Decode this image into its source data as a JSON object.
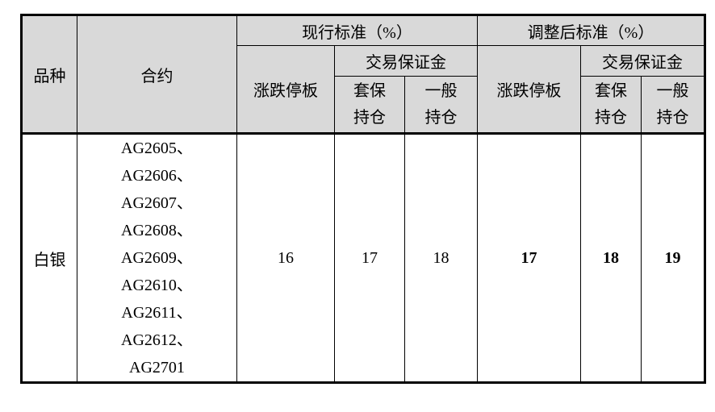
{
  "header": {
    "variety": "品种",
    "contract": "合约",
    "current_title": "现行标准（%）",
    "adjusted_title": "调整后标准（%）",
    "price_limit": "涨跌停板",
    "trading_margin": "交易保证金",
    "hedge_line1": "套保",
    "hedge_line2": "持仓",
    "general_line1": "一般",
    "general_line2": "持仓"
  },
  "row": {
    "variety": "白银",
    "contracts": [
      "AG2605、",
      "AG2606、",
      "AG2607、",
      "AG2608、",
      "AG2609、",
      "AG2610、",
      "AG2611、",
      "AG2612、",
      "AG2701"
    ],
    "current": {
      "price_limit": "16",
      "hedge": "17",
      "general": "18"
    },
    "adjusted": {
      "price_limit": "17",
      "hedge": "18",
      "general": "19"
    }
  },
  "colors": {
    "header_bg": "#d9d9d9",
    "border": "#000000",
    "text": "#000000",
    "page_bg": "#ffffff"
  }
}
